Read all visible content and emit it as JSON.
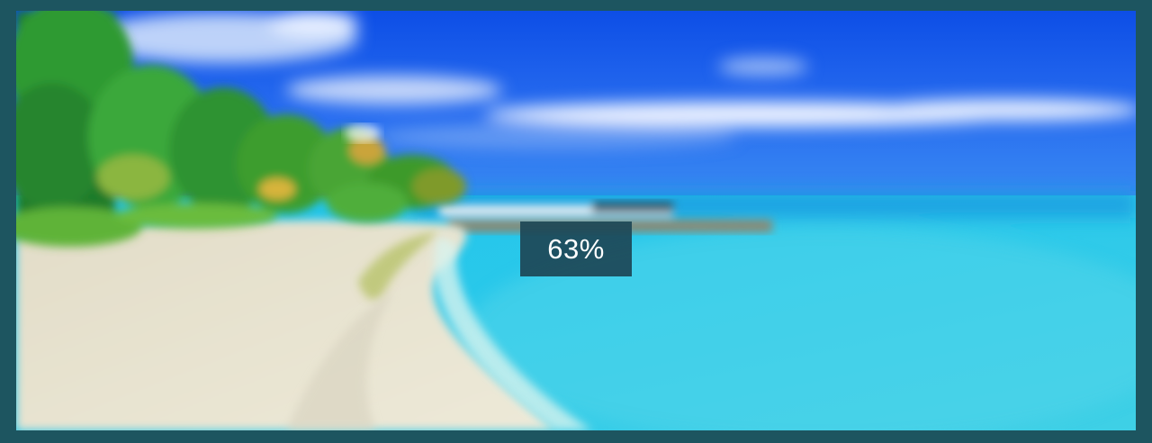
{
  "viewer": {
    "zoom_level_label": "63%",
    "zoom_level_percent": 63,
    "frame_color": "#1d5560",
    "badge_color": "#1d4656"
  },
  "image": {
    "icon": "beach-photo"
  }
}
